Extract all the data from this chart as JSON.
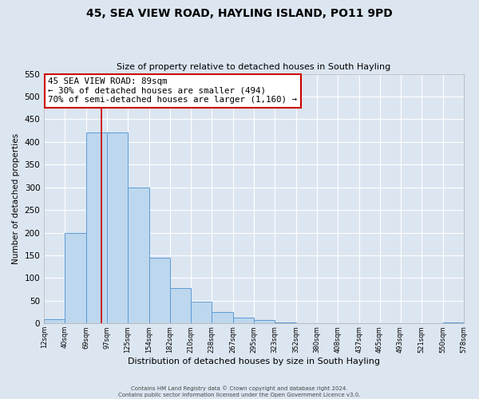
{
  "title": "45, SEA VIEW ROAD, HAYLING ISLAND, PO11 9PD",
  "subtitle": "Size of property relative to detached houses in South Hayling",
  "xlabel": "Distribution of detached houses by size in South Hayling",
  "ylabel": "Number of detached properties",
  "bar_color": "#bdd7ee",
  "bar_edge_color": "#5b9bd5",
  "bg_color": "#dce6f1",
  "grid_color": "#ffffff",
  "bin_edges": [
    12,
    40,
    69,
    97,
    125,
    154,
    182,
    210,
    238,
    267,
    295,
    323,
    352,
    380,
    408,
    437,
    465,
    493,
    521,
    550,
    578
  ],
  "bin_labels": [
    "12sqm",
    "40sqm",
    "69sqm",
    "97sqm",
    "125sqm",
    "154sqm",
    "182sqm",
    "210sqm",
    "238sqm",
    "267sqm",
    "295sqm",
    "323sqm",
    "352sqm",
    "380sqm",
    "408sqm",
    "437sqm",
    "465sqm",
    "493sqm",
    "521sqm",
    "550sqm",
    "578sqm"
  ],
  "counts": [
    10,
    200,
    420,
    420,
    300,
    145,
    78,
    48,
    25,
    13,
    8,
    3,
    1,
    0,
    0,
    0,
    0,
    0,
    0,
    2
  ],
  "ylim": [
    0,
    550
  ],
  "yticks": [
    0,
    50,
    100,
    150,
    200,
    250,
    300,
    350,
    400,
    450,
    500,
    550
  ],
  "vline_x": 89,
  "annotation_title": "45 SEA VIEW ROAD: 89sqm",
  "annotation_line1": "← 30% of detached houses are smaller (494)",
  "annotation_line2": "70% of semi-detached houses are larger (1,160) →",
  "annotation_box_color": "#ffffff",
  "annotation_box_edge": "#cc0000",
  "vline_color": "#cc0000",
  "footer1": "Contains HM Land Registry data © Crown copyright and database right 2024.",
  "footer2": "Contains public sector information licensed under the Open Government Licence v3.0."
}
